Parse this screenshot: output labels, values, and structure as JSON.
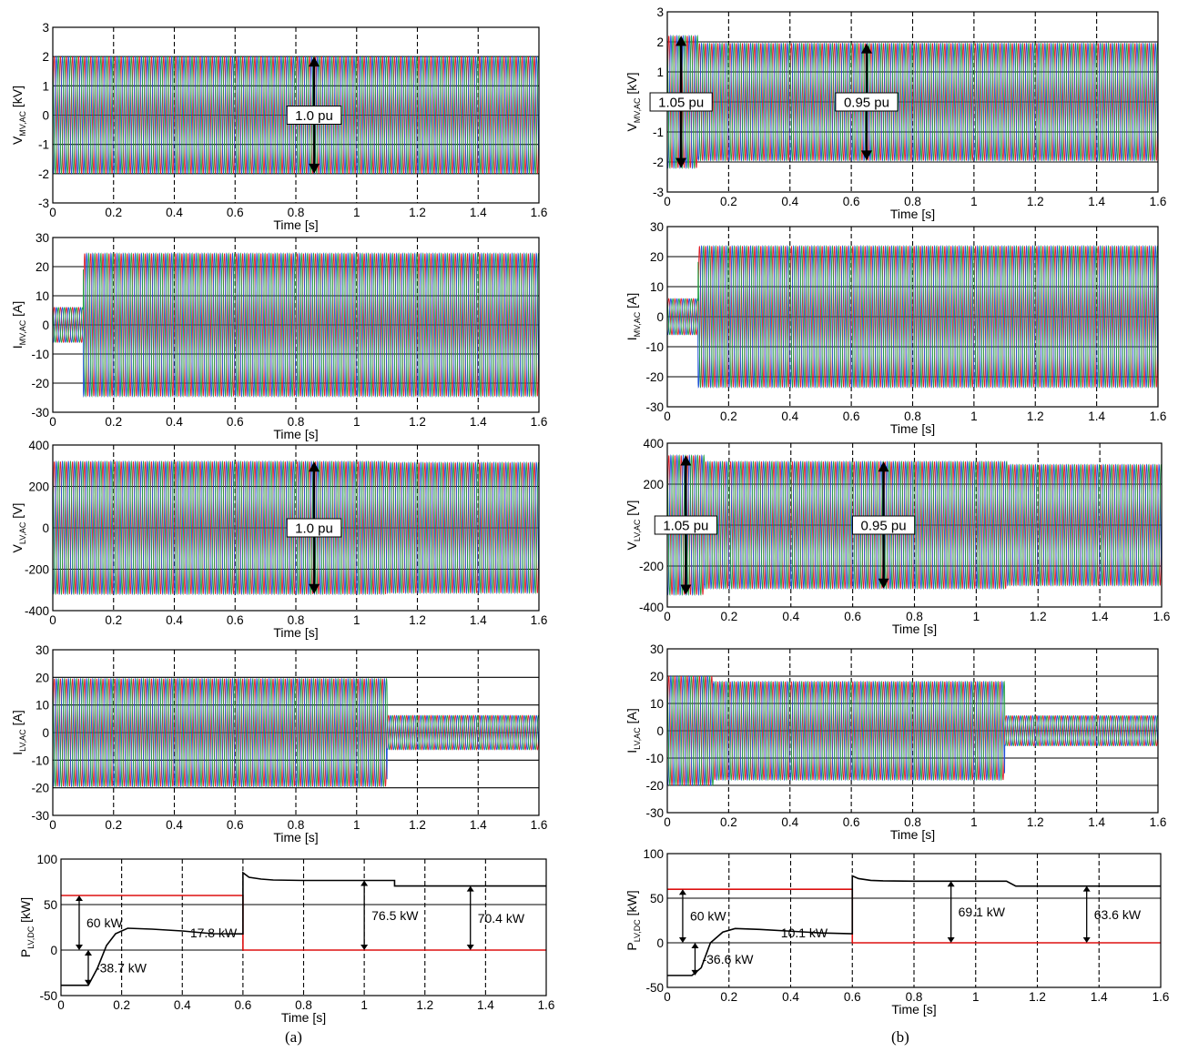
{
  "captions": [
    "(a)",
    "(b)"
  ],
  "colors": {
    "phase_a": "#e0202a",
    "phase_b": "#2050d8",
    "phase_c": "#20a040",
    "black": "#000000",
    "ref_red": "#dd1010",
    "grid": "#000000"
  },
  "chart_data": [
    {
      "type": "line",
      "panel": "a",
      "signal": "vmv",
      "xlabel": "Time [s]",
      "ylabel": "V",
      "ylabel_sub": "MV,AC",
      "ylabel_unit": " [kV]",
      "xlim": [
        0,
        1.6
      ],
      "ylim": [
        -3,
        3
      ],
      "xticks": [
        0,
        0.2,
        0.4,
        0.6,
        0.8,
        1,
        1.2,
        1.4,
        1.6
      ],
      "yticks": [
        -3,
        -2,
        -1,
        0,
        1,
        2,
        3
      ],
      "amp_segments": [
        [
          0,
          1.6,
          2.0
        ]
      ],
      "annotations": [
        {
          "label": "1.0 pu",
          "x": 0.86,
          "y1": 2.0,
          "y2": -2.0
        }
      ]
    },
    {
      "type": "line",
      "panel": "a",
      "signal": "imv",
      "xlabel": "Time [s]",
      "ylabel": "I",
      "ylabel_sub": "MV,AC",
      "ylabel_unit": " [A]",
      "xlim": [
        0,
        1.6
      ],
      "ylim": [
        -30,
        30
      ],
      "xticks": [
        0,
        0.2,
        0.4,
        0.6,
        0.8,
        1,
        1.2,
        1.4,
        1.6
      ],
      "yticks": [
        -30,
        -20,
        -10,
        0,
        10,
        20,
        30
      ],
      "amp_segments": [
        [
          0,
          0.1,
          6
        ],
        [
          0.1,
          1.6,
          24.5
        ]
      ],
      "annotations": []
    },
    {
      "type": "line",
      "panel": "a",
      "signal": "vlv",
      "xlabel": "Time [s]",
      "ylabel": "V",
      "ylabel_sub": "LV,AC",
      "ylabel_unit": " [V]",
      "xlim": [
        0,
        1.6
      ],
      "ylim": [
        -400,
        400
      ],
      "xticks": [
        0,
        0.2,
        0.4,
        0.6,
        0.8,
        1,
        1.2,
        1.4,
        1.6
      ],
      "yticks": [
        -400,
        -200,
        0,
        200,
        400
      ],
      "amp_segments": [
        [
          0,
          1.1,
          320
        ],
        [
          1.1,
          1.6,
          315
        ]
      ],
      "annotations": [
        {
          "label": "1.0 pu",
          "x": 0.86,
          "y1": 320,
          "y2": -320
        }
      ]
    },
    {
      "type": "line",
      "panel": "a",
      "signal": "ilv",
      "xlabel": "Time [s]",
      "ylabel": "I",
      "ylabel_sub": "LV,AC",
      "ylabel_unit": " [A]",
      "xlim": [
        0,
        1.6
      ],
      "ylim": [
        -30,
        30
      ],
      "xticks": [
        0,
        0.2,
        0.4,
        0.6,
        0.8,
        1,
        1.2,
        1.4,
        1.6
      ],
      "yticks": [
        -30,
        -20,
        -10,
        0,
        10,
        20,
        30
      ],
      "amp_segments": [
        [
          0,
          1.1,
          19.5
        ],
        [
          1.1,
          1.6,
          6.2
        ]
      ],
      "annotations": []
    },
    {
      "type": "line",
      "panel": "a",
      "signal": "pdc",
      "xlabel": "Time [s]",
      "ylabel": "P",
      "ylabel_sub": "LV,DC",
      "ylabel_unit": " [kW]",
      "xlim": [
        0,
        1.6
      ],
      "ylim": [
        -50,
        100
      ],
      "xticks": [
        0,
        0.2,
        0.4,
        0.6,
        0.8,
        1,
        1.2,
        1.4,
        1.6
      ],
      "yticks": [
        -50,
        0,
        50,
        100
      ],
      "series": [
        {
          "color": "ref_red",
          "x": [
            0,
            0.6,
            0.6,
            1.6
          ],
          "y": [
            60,
            60,
            0,
            0
          ]
        },
        {
          "color": "black",
          "x": [
            0,
            0.09,
            0.12,
            0.15,
            0.18,
            0.22,
            0.3,
            0.4,
            0.5,
            0.6,
            0.6,
            0.62,
            0.66,
            0.7,
            0.8,
            1.0,
            1.1,
            1.1,
            1.6
          ],
          "y": [
            -38.7,
            -38.7,
            -20,
            5,
            18,
            24,
            23,
            21,
            18,
            17.8,
            85,
            80,
            78,
            77,
            76.5,
            76.5,
            76.5,
            70.4,
            70.4
          ]
        }
      ],
      "annotations": [
        {
          "label": "60 kW",
          "x": 0.06,
          "y1": 60,
          "y2": 0
        },
        {
          "label": "-38.7 kW",
          "x": 0.09,
          "y1": 0,
          "y2": -38.7
        },
        {
          "label": "17.8 kW",
          "x": 0.58,
          "y1": 17.8,
          "y2": 17.8,
          "text_only": true
        },
        {
          "label": "76.5 kW",
          "x": 1.0,
          "y1": 76.5,
          "y2": 0
        },
        {
          "label": "70.4 kW",
          "x": 1.35,
          "y1": 70.4,
          "y2": 0
        }
      ]
    },
    {
      "type": "line",
      "panel": "b",
      "signal": "vmv",
      "xlabel": "Time [s]",
      "ylabel": "V",
      "ylabel_sub": "MV,AC",
      "ylabel_unit": " [kV]",
      "xlim": [
        0,
        1.6
      ],
      "ylim": [
        -3,
        3
      ],
      "xticks": [
        0,
        0.2,
        0.4,
        0.6,
        0.8,
        1,
        1.2,
        1.4,
        1.6
      ],
      "yticks": [
        -3,
        -2,
        -1,
        0,
        1,
        2,
        3
      ],
      "amp_segments": [
        [
          0,
          0.1,
          2.2
        ],
        [
          0.1,
          1.6,
          1.95
        ]
      ],
      "annotations": [
        {
          "label": "1.05 pu",
          "x": 0.045,
          "y1": 2.2,
          "y2": -2.2
        },
        {
          "label": "0.95 pu",
          "x": 0.65,
          "y1": 1.95,
          "y2": -1.95
        }
      ]
    },
    {
      "type": "line",
      "panel": "b",
      "signal": "imv",
      "xlabel": "Time [s]",
      "ylabel": "I",
      "ylabel_sub": "MV,AC",
      "ylabel_unit": " [A]",
      "xlim": [
        0,
        1.6
      ],
      "ylim": [
        -30,
        30
      ],
      "xticks": [
        0,
        0.2,
        0.4,
        0.6,
        0.8,
        1,
        1.2,
        1.4,
        1.6
      ],
      "yticks": [
        -30,
        -20,
        -10,
        0,
        10,
        20,
        30
      ],
      "amp_segments": [
        [
          0,
          0.1,
          6
        ],
        [
          0.1,
          1.6,
          23.5
        ]
      ],
      "annotations": []
    },
    {
      "type": "line",
      "panel": "b",
      "signal": "vlv",
      "xlabel": "Time [s]",
      "ylabel": "V",
      "ylabel_sub": "LV,AC",
      "ylabel_unit": " [V]",
      "xlim": [
        0,
        1.6
      ],
      "ylim": [
        -400,
        400
      ],
      "xticks": [
        0,
        0.2,
        0.4,
        0.6,
        0.8,
        1,
        1.2,
        1.4,
        1.6
      ],
      "yticks": [
        -400,
        -200,
        0,
        200,
        400
      ],
      "amp_segments": [
        [
          0,
          0.12,
          340
        ],
        [
          0.12,
          1.1,
          310
        ],
        [
          1.1,
          1.6,
          295
        ]
      ],
      "annotations": [
        {
          "label": "1.05 pu",
          "x": 0.06,
          "y1": 340,
          "y2": -340
        },
        {
          "label": "0.95 pu",
          "x": 0.7,
          "y1": 310,
          "y2": -310
        }
      ]
    },
    {
      "type": "line",
      "panel": "b",
      "signal": "ilv",
      "xlabel": "Time [s]",
      "ylabel": "I",
      "ylabel_sub": "LV,AC",
      "ylabel_unit": " [A]",
      "xlim": [
        0,
        1.6
      ],
      "ylim": [
        -30,
        30
      ],
      "xticks": [
        0,
        0.2,
        0.4,
        0.6,
        0.8,
        1,
        1.2,
        1.4,
        1.6
      ],
      "yticks": [
        -30,
        -20,
        -10,
        0,
        10,
        20,
        30
      ],
      "amp_segments": [
        [
          0,
          0.15,
          20
        ],
        [
          0.15,
          1.1,
          18
        ],
        [
          1.1,
          1.6,
          5.5
        ]
      ],
      "annotations": []
    },
    {
      "type": "line",
      "panel": "b",
      "signal": "pdc",
      "xlabel": "Time [s]",
      "ylabel": "P",
      "ylabel_sub": "LV,DC",
      "ylabel_unit": " [kW]",
      "xlim": [
        0,
        1.6
      ],
      "ylim": [
        -50,
        100
      ],
      "xticks": [
        0,
        0.2,
        0.4,
        0.6,
        0.8,
        1,
        1.2,
        1.4,
        1.6
      ],
      "yticks": [
        -50,
        0,
        50,
        100
      ],
      "series": [
        {
          "color": "ref_red",
          "x": [
            0,
            0.6,
            0.6,
            1.6
          ],
          "y": [
            60,
            60,
            0,
            0
          ]
        },
        {
          "color": "black",
          "x": [
            0,
            0.08,
            0.11,
            0.14,
            0.18,
            0.22,
            0.3,
            0.4,
            0.5,
            0.6,
            0.6,
            0.62,
            0.66,
            0.7,
            0.8,
            1.0,
            1.1,
            1.13,
            1.6
          ],
          "y": [
            -36.6,
            -36.6,
            -28,
            0,
            12,
            16,
            15,
            13,
            11,
            10.1,
            75,
            72,
            70,
            69.5,
            69.1,
            69.1,
            69.1,
            63.6,
            63.6
          ]
        }
      ],
      "annotations": [
        {
          "label": "60 kW",
          "x": 0.05,
          "y1": 60,
          "y2": 0
        },
        {
          "label": "-36.6 kW",
          "x": 0.09,
          "y1": 0,
          "y2": -36.6
        },
        {
          "label": "10.1 kW",
          "x": 0.52,
          "y1": 10.1,
          "y2": 10.1,
          "text_only": true
        },
        {
          "label": "69.1 kW",
          "x": 0.92,
          "y1": 69.1,
          "y2": 0
        },
        {
          "label": "63.6 kW",
          "x": 1.36,
          "y1": 63.6,
          "y2": 0
        }
      ]
    }
  ]
}
